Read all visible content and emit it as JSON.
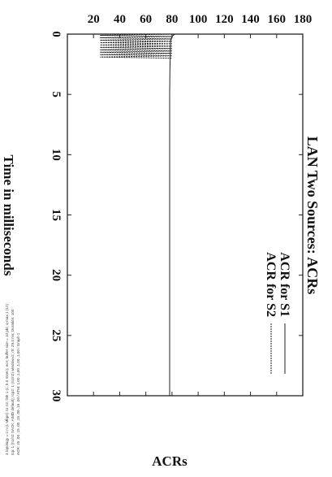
{
  "header_lines": [
    "3 topology = 2 n (1 Mbps) n1 n2; link 1 (c, 5.0 msec); ecn; buffer size = 10 pkt; q-max 1 (12)",
    "tcp: 1 (n1/n2 SACK, AIMD default); tcp2: 1 (n1/n2) window=2; rtt: 29.4 ms; Duration: 100",
    "ACR: 25 ,00 ,15 ,00 ,15 ,00 ,15 ,00 / ATM: 1,00 ,1,00 ,1,00 ,1,00 / Graph 1"
  ],
  "chart_data": {
    "type": "line",
    "title": "LAN Two Sources: ACRs",
    "xlabel": "Time in milliseconds",
    "ylabel": "ACRs",
    "xlim": [
      0,
      30
    ],
    "ylim": [
      0,
      180
    ],
    "xticks": [
      "0",
      "5",
      "10",
      "15",
      "20",
      "25",
      "30"
    ],
    "yticks": [
      "20",
      "40",
      "60",
      "80",
      "100",
      "120",
      "140",
      "160",
      "180"
    ],
    "rotation": "rotated 90 degrees clockwise",
    "legend_position": "top-right",
    "series": [
      {
        "name": "ACR for S1",
        "style": "solid",
        "color": "#222222",
        "x": [
          0,
          0.2,
          0.5,
          1,
          2,
          3,
          4,
          5,
          6,
          10,
          15,
          20,
          25,
          30
        ],
        "y": [
          82,
          80,
          79,
          78.8,
          78.6,
          78.4,
          78.3,
          78.2,
          78.2,
          78.2,
          78.2,
          78.2,
          78.2,
          78.2
        ]
      },
      {
        "name": "ACR for S2",
        "style": "dashed",
        "color": "#222222",
        "x": [
          0,
          0.1,
          0.2,
          0.3,
          0.4,
          0.5,
          0.6,
          0.7,
          0.8,
          0.9,
          1.0,
          1.1,
          1.2,
          1.3,
          1.4,
          1.5,
          1.6,
          1.7,
          1.8,
          1.9,
          2.0
        ],
        "y": [
          80,
          25,
          80,
          25,
          80,
          25,
          80,
          25,
          80,
          25,
          80,
          25,
          80,
          25,
          80,
          25,
          80,
          25,
          80,
          25,
          80
        ]
      }
    ]
  }
}
